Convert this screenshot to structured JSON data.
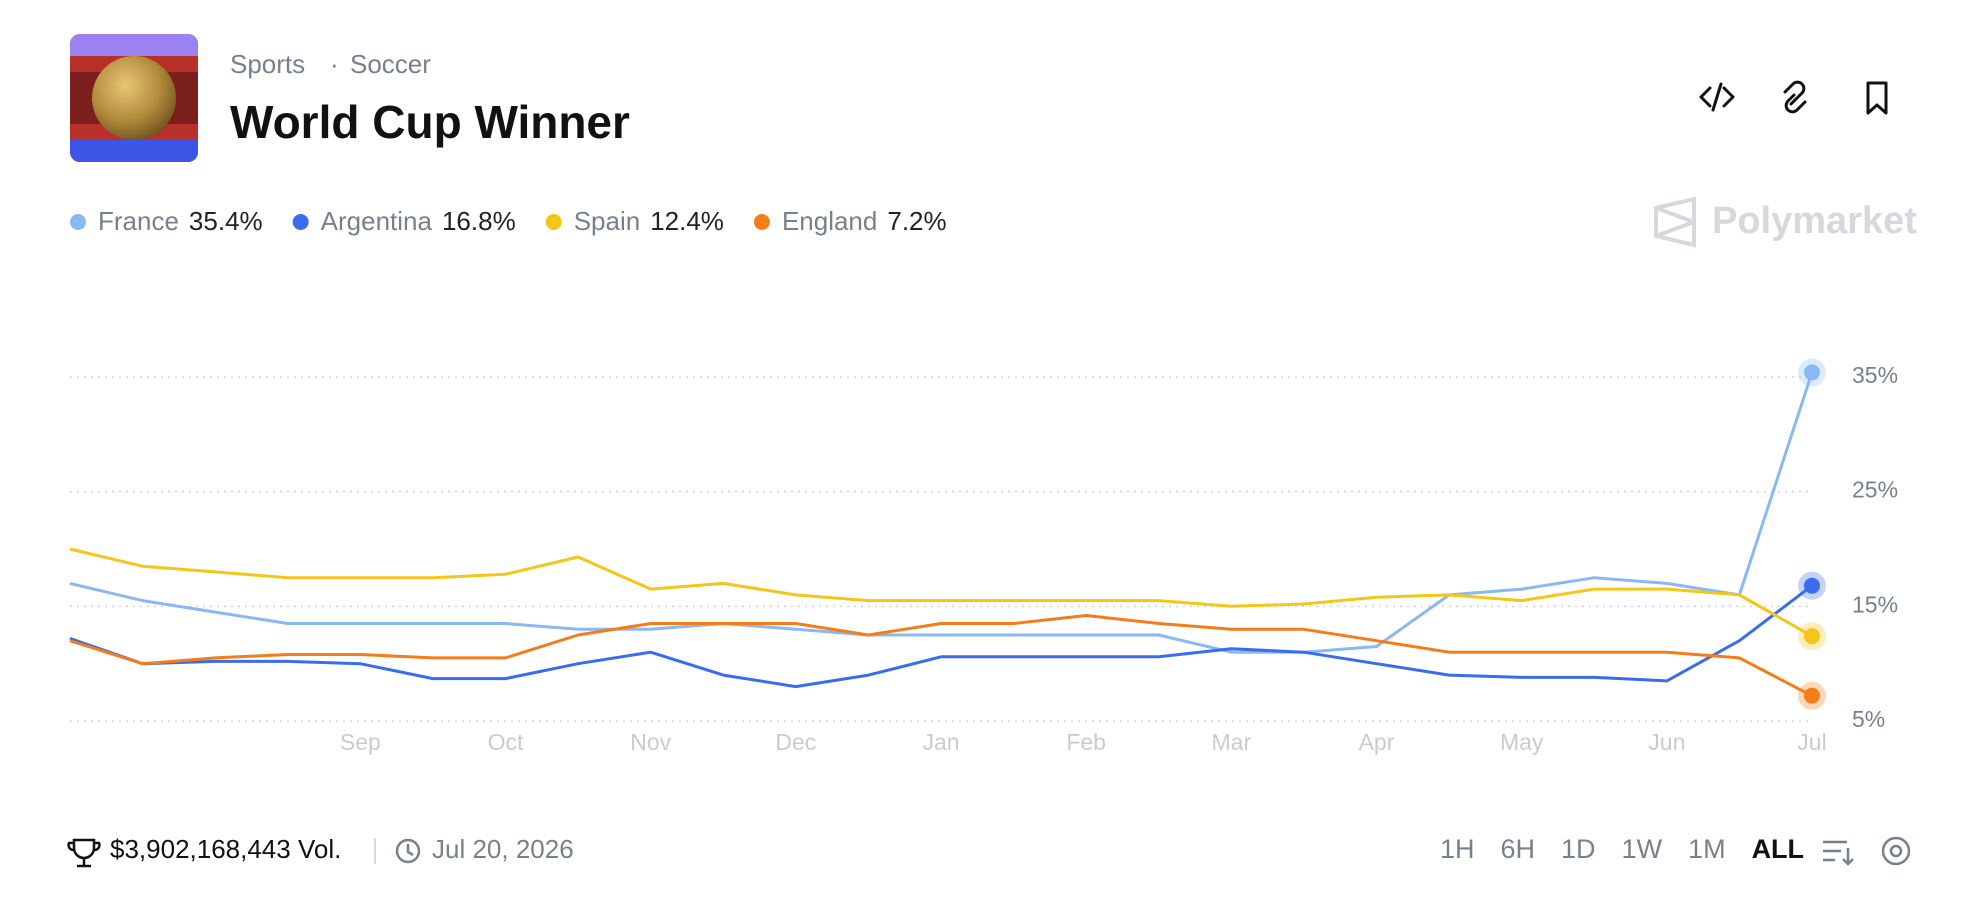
{
  "header": {
    "category": "Sports",
    "subcategory": "Soccer",
    "title": "World Cup Winner",
    "brand": "Polymarket"
  },
  "chart_data": {
    "type": "line",
    "categories": [
      null,
      null,
      null,
      null,
      "Sep",
      null,
      "Oct",
      null,
      "Nov",
      null,
      "Dec",
      null,
      "Jan",
      null,
      "Feb",
      null,
      "Mar",
      null,
      "Apr",
      null,
      "May",
      null,
      "Jun",
      null,
      "Jul"
    ],
    "series": [
      {
        "name": "France",
        "current": "35.4%",
        "color": "#8ab8f5",
        "values": [
          17,
          15.5,
          14.5,
          13.5,
          13.5,
          13.5,
          13.5,
          13,
          13,
          13.5,
          13,
          12.5,
          12.5,
          12.5,
          12.5,
          12.5,
          11,
          11,
          11.5,
          16,
          16.5,
          17.5,
          17,
          16,
          35.4
        ]
      },
      {
        "name": "Argentina",
        "current": "16.8%",
        "color": "#3b6cf0",
        "values": [
          12.2,
          10,
          10.2,
          10.2,
          10,
          8.7,
          8.7,
          10,
          11,
          9,
          8,
          9,
          10.6,
          10.6,
          10.6,
          10.6,
          11.3,
          11,
          10,
          9,
          8.8,
          8.8,
          8.5,
          12,
          16.8
        ]
      },
      {
        "name": "Spain",
        "current": "12.4%",
        "color": "#f5c518",
        "values": [
          20,
          18.5,
          18,
          17.5,
          17.5,
          17.5,
          17.8,
          19.3,
          16.5,
          17,
          16,
          15.5,
          15.5,
          15.5,
          15.5,
          15.5,
          15,
          15.2,
          15.8,
          16,
          15.5,
          16.5,
          16.5,
          16,
          12.4
        ]
      },
      {
        "name": "England",
        "current": "7.2%",
        "color": "#f57d19",
        "values": [
          12,
          10,
          10.5,
          10.8,
          10.8,
          10.5,
          10.5,
          12.5,
          13.5,
          13.5,
          13.5,
          12.5,
          13.5,
          13.5,
          14.2,
          13.5,
          13,
          13,
          12,
          11,
          11,
          11,
          11,
          10.5,
          7.2
        ]
      }
    ],
    "ylim": [
      5,
      35
    ],
    "yticks": [
      {
        "value": 5,
        "label": "5%"
      },
      {
        "value": 15,
        "label": "15%"
      },
      {
        "value": 25,
        "label": "25%"
      },
      {
        "value": 35,
        "label": "35%"
      }
    ],
    "grid": true
  },
  "footer": {
    "volume": "$3,902,168,443 Vol.",
    "end_date": "Jul 20, 2026",
    "timeframes": [
      "1H",
      "6H",
      "1D",
      "1W",
      "1M",
      "ALL"
    ],
    "selected": "ALL"
  }
}
